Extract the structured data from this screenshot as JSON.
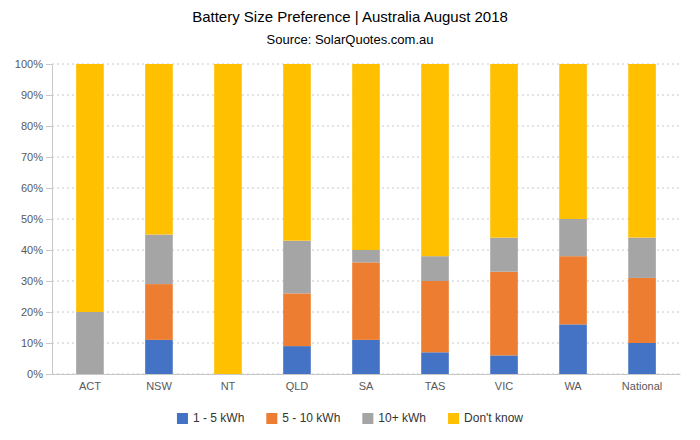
{
  "chart_data": {
    "type": "bar",
    "title": "Battery Size Preference  |  Australia August 2018",
    "subtitle": "Source: SolarQuotes.com.au",
    "categories": [
      "ACT",
      "NSW",
      "NT",
      "QLD",
      "SA",
      "TAS",
      "VIC",
      "WA",
      "National"
    ],
    "series": [
      {
        "name": "1 - 5 kWh",
        "color": "#4472c4",
        "values": [
          0,
          11,
          0,
          9,
          11,
          7,
          6,
          16,
          10
        ]
      },
      {
        "name": "5 - 10 kWh",
        "color": "#ed7d31",
        "values": [
          0,
          18,
          0,
          17,
          25,
          23,
          27,
          22,
          21
        ]
      },
      {
        "name": "10+ kWh",
        "color": "#a5a5a5",
        "values": [
          20,
          16,
          0,
          17,
          4,
          8,
          11,
          12,
          13
        ]
      },
      {
        "name": "Don't know",
        "color": "#ffc000",
        "values": [
          80,
          55,
          100,
          57,
          60,
          62,
          56,
          50,
          56
        ]
      }
    ],
    "stacked": true,
    "ylim": [
      0,
      100
    ],
    "yticks": [
      {
        "value": 0,
        "label": "0%"
      },
      {
        "value": 10,
        "label": "10%"
      },
      {
        "value": 20,
        "label": "20%"
      },
      {
        "value": 30,
        "label": "30%"
      },
      {
        "value": 40,
        "label": "40%"
      },
      {
        "value": 50,
        "label": "50%"
      },
      {
        "value": 60,
        "label": "60%"
      },
      {
        "value": 70,
        "label": "70%"
      },
      {
        "value": 80,
        "label": "80%"
      },
      {
        "value": 90,
        "label": "90%"
      },
      {
        "value": 100,
        "label": "100%"
      }
    ],
    "grid": true,
    "legend": "bottom"
  }
}
